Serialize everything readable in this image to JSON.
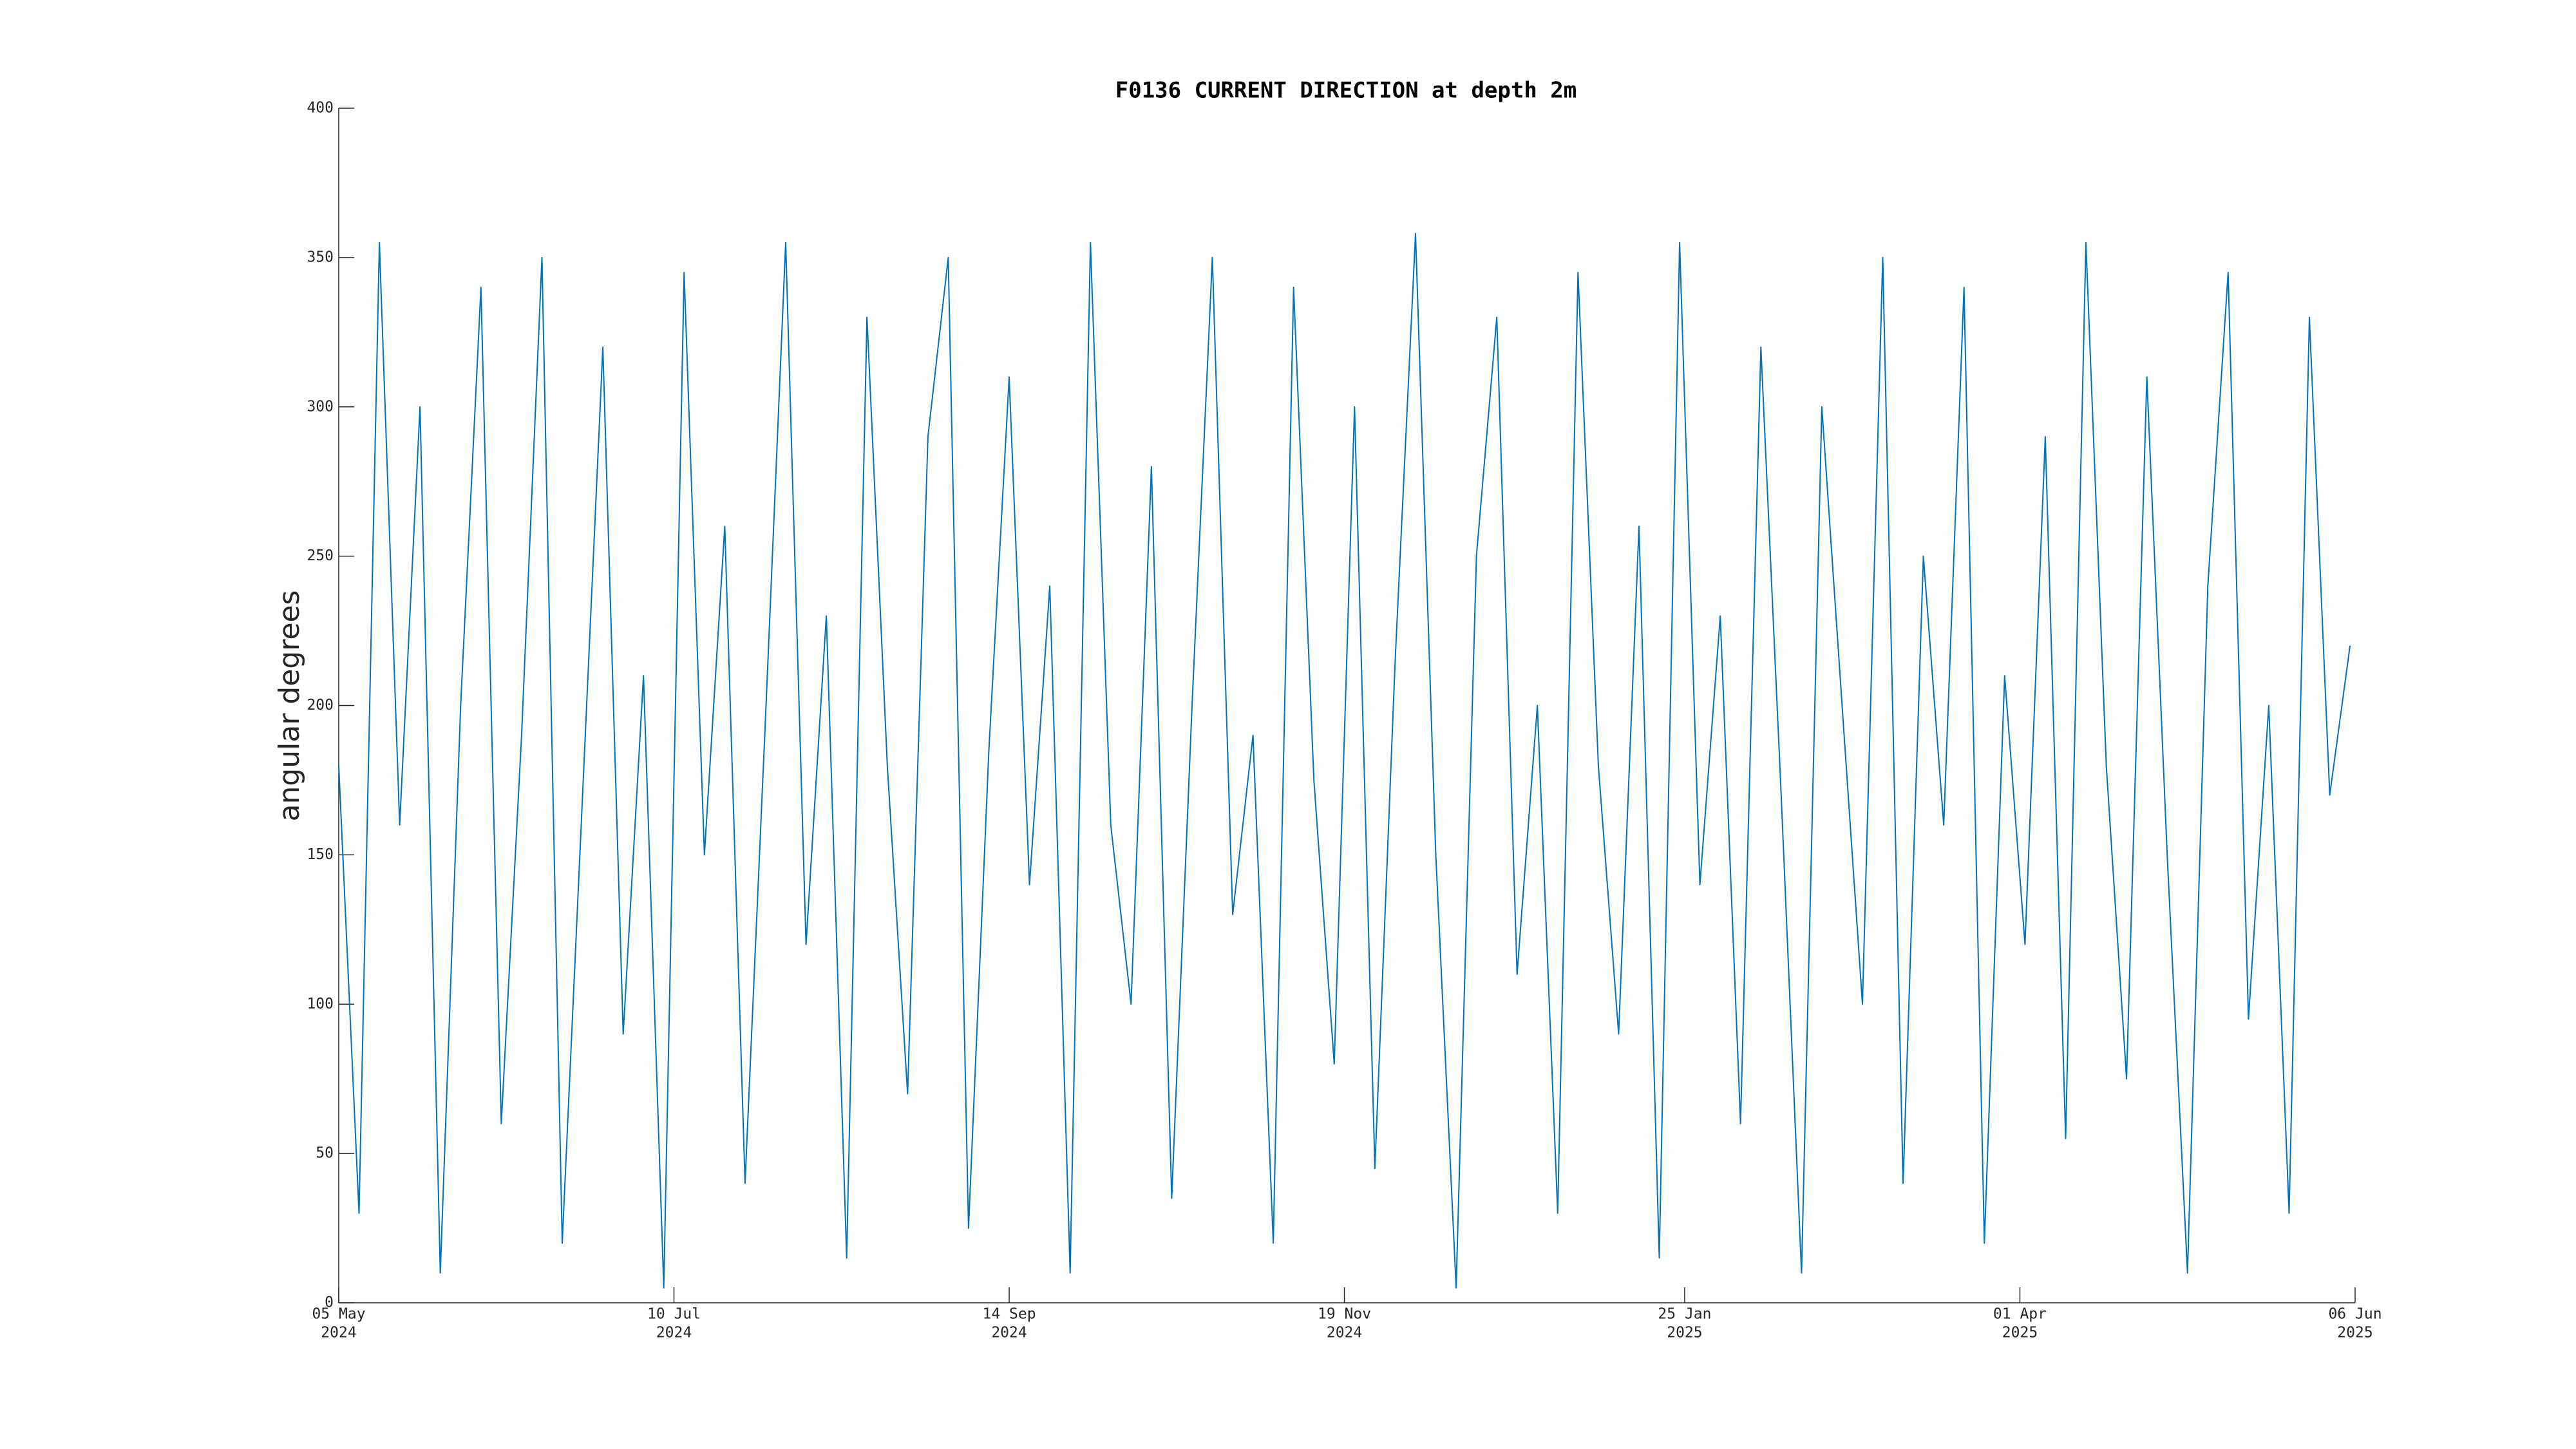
{
  "chart_data": {
    "type": "line",
    "title": "F0136 CURRENT DIRECTION at depth 2m",
    "ylabel": "angular degrees",
    "color": "#0072bd",
    "x": [
      "2024-05-05",
      "2024-05-09",
      "2024-05-13",
      "2024-05-17",
      "2024-05-21",
      "2024-05-25",
      "2024-05-29",
      "2024-06-02",
      "2024-06-06",
      "2024-06-10",
      "2024-06-14",
      "2024-06-18",
      "2024-06-22",
      "2024-06-26",
      "2024-06-30",
      "2024-07-04",
      "2024-07-08",
      "2024-07-12",
      "2024-07-16",
      "2024-07-20",
      "2024-07-24",
      "2024-07-28",
      "2024-08-01",
      "2024-08-05",
      "2024-08-09",
      "2024-08-13",
      "2024-08-17",
      "2024-08-21",
      "2024-08-25",
      "2024-08-29",
      "2024-09-02",
      "2024-09-06",
      "2024-09-10",
      "2024-09-14",
      "2024-09-18",
      "2024-09-22",
      "2024-09-26",
      "2024-09-30",
      "2024-10-04",
      "2024-10-08",
      "2024-10-12",
      "2024-10-16",
      "2024-10-20",
      "2024-10-24",
      "2024-10-28",
      "2024-11-01",
      "2024-11-05",
      "2024-11-09",
      "2024-11-13",
      "2024-11-17",
      "2024-11-21",
      "2024-11-25",
      "2024-11-29",
      "2024-12-03",
      "2024-12-07",
      "2024-12-11",
      "2024-12-15",
      "2024-12-19",
      "2024-12-23",
      "2024-12-27",
      "2024-12-31",
      "2025-01-04",
      "2025-01-08",
      "2025-01-12",
      "2025-01-16",
      "2025-01-20",
      "2025-01-24",
      "2025-01-28",
      "2025-02-01",
      "2025-02-05",
      "2025-02-09",
      "2025-02-13",
      "2025-02-17",
      "2025-02-21",
      "2025-02-25",
      "2025-03-01",
      "2025-03-05",
      "2025-03-09",
      "2025-03-13",
      "2025-03-17",
      "2025-03-21",
      "2025-03-25",
      "2025-03-29",
      "2025-04-02",
      "2025-04-06",
      "2025-04-10",
      "2025-04-14",
      "2025-04-18",
      "2025-04-22",
      "2025-04-26",
      "2025-04-30",
      "2025-05-04",
      "2025-05-08",
      "2025-05-12",
      "2025-05-16",
      "2025-05-20",
      "2025-05-24",
      "2025-05-28",
      "2025-06-01",
      "2025-06-05"
    ],
    "values": [
      180,
      30,
      355,
      160,
      300,
      10,
      200,
      340,
      60,
      190,
      350,
      20,
      170,
      320,
      90,
      210,
      5,
      345,
      150,
      260,
      40,
      195,
      355,
      120,
      230,
      15,
      330,
      180,
      70,
      290,
      350,
      25,
      185,
      310,
      140,
      240,
      10,
      355,
      160,
      100,
      280,
      35,
      200,
      350,
      130,
      190,
      20,
      340,
      175,
      80,
      300,
      45,
      215,
      358,
      150,
      5,
      250,
      330,
      110,
      200,
      30,
      345,
      180,
      90,
      260,
      15,
      355,
      140,
      230,
      60,
      320,
      170,
      10,
      300,
      200,
      100,
      350,
      40,
      250,
      160,
      340,
      20,
      210,
      120,
      290,
      55,
      355,
      180,
      75,
      310,
      150,
      10,
      240,
      345,
      95,
      200,
      30,
      330,
      170,
      220
    ],
    "xlim": [
      "2024-05-05",
      "2025-06-06"
    ],
    "xticks": [
      {
        "value": "2024-05-05",
        "label": [
          "05 May",
          "2024"
        ]
      },
      {
        "value": "2024-07-10",
        "label": [
          "10 Jul",
          "2024"
        ]
      },
      {
        "value": "2024-09-14",
        "label": [
          "14 Sep",
          "2024"
        ]
      },
      {
        "value": "2024-11-19",
        "label": [
          "19 Nov",
          "2024"
        ]
      },
      {
        "value": "2025-01-25",
        "label": [
          "25 Jan",
          "2025"
        ]
      },
      {
        "value": "2025-04-01",
        "label": [
          "01 Apr",
          "2025"
        ]
      },
      {
        "value": "2025-06-06",
        "label": [
          "06 Jun",
          "2025"
        ]
      }
    ],
    "ylim": [
      0,
      400
    ],
    "yticks": [
      0,
      50,
      100,
      150,
      200,
      250,
      300,
      350,
      400
    ],
    "grid": false
  }
}
